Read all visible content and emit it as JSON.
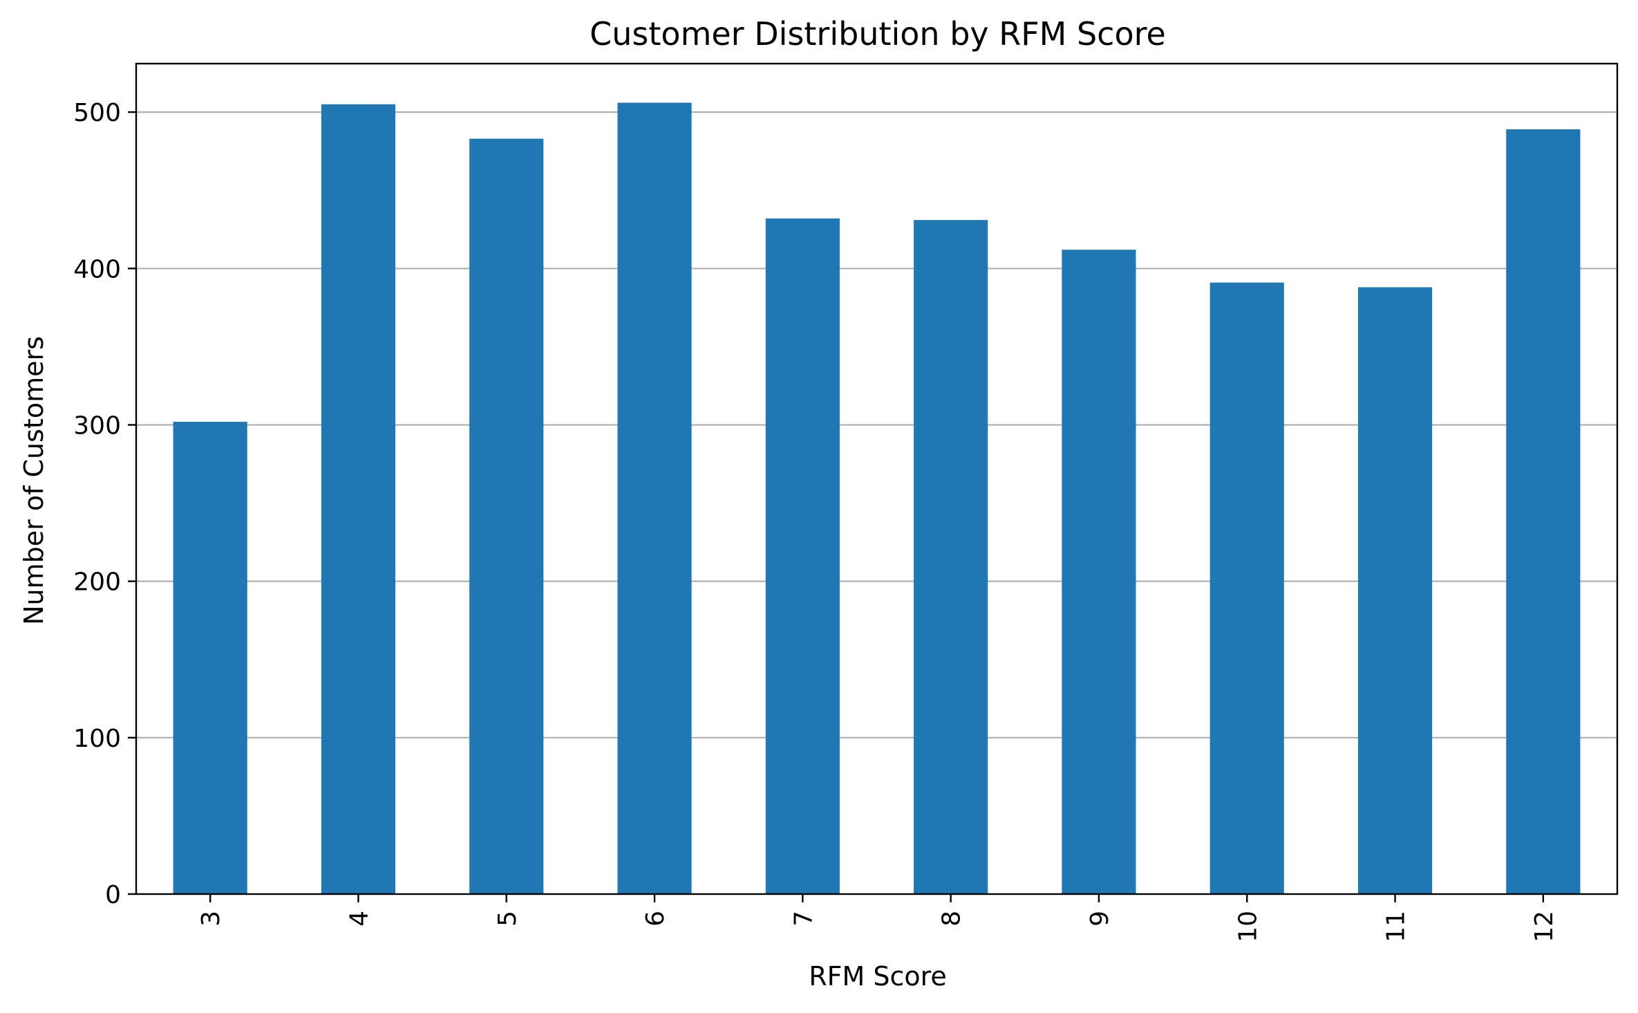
{
  "chart_data": {
    "type": "bar",
    "title": "Customer Distribution by RFM Score",
    "xlabel": "RFM Score",
    "ylabel": "Number of Customers",
    "categories": [
      "3",
      "4",
      "5",
      "6",
      "7",
      "8",
      "9",
      "10",
      "11",
      "12"
    ],
    "values": [
      302,
      505,
      483,
      506,
      432,
      431,
      412,
      391,
      388,
      489
    ],
    "ylim": [
      0,
      531
    ],
    "yticks": [
      0,
      100,
      200,
      300,
      400,
      500
    ],
    "grid": "y",
    "legend": "none",
    "bar_color": "#1f77b4",
    "grid_color": "#b0b0b0"
  }
}
